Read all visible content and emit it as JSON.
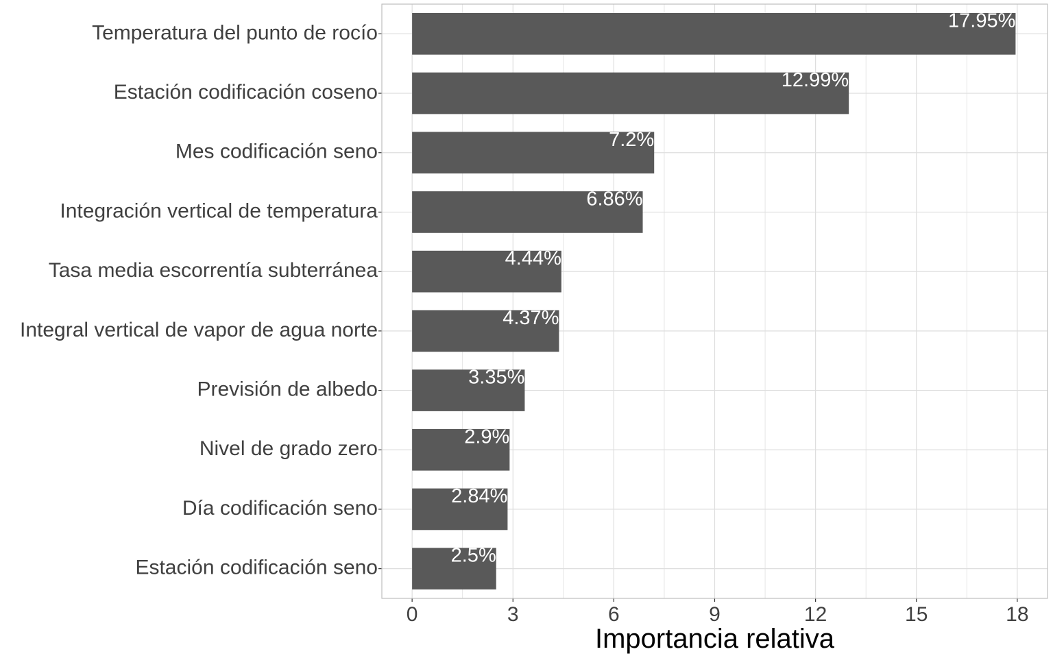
{
  "chart_data": {
    "type": "bar",
    "orientation": "horizontal",
    "categories": [
      "Temperatura del punto de rocío",
      "Estación codificación coseno",
      "Mes codificación seno",
      "Integración vertical de temperatura",
      "Tasa media escorrentía subterránea",
      "Integral vertical de vapor de agua norte",
      "Previsión de albedo",
      "Nivel de grado zero",
      "Día codificación seno",
      "Estación codificación seno"
    ],
    "values": [
      17.95,
      12.99,
      7.2,
      6.86,
      4.44,
      4.37,
      3.35,
      2.9,
      2.84,
      2.5
    ],
    "data_labels": [
      "17.95%",
      "12.99%",
      "7.2%",
      "6.86%",
      "4.44%",
      "4.37%",
      "3.35%",
      "2.9%",
      "2.84%",
      "2.5%"
    ],
    "xlabel": "Importancia relativa",
    "ylabel": "",
    "xlim": [
      -0.9,
      18.9
    ],
    "xticks": [
      0,
      3,
      6,
      9,
      12,
      15,
      18
    ],
    "xtick_labels": [
      "0",
      "3",
      "6",
      "9",
      "12",
      "15",
      "18"
    ],
    "grid": true,
    "legend": "none",
    "colors": {
      "bar": "#595959",
      "grid": "#dedede",
      "panel_border": "#bdbdbd",
      "data_label": "#ffffff",
      "text": "#404040"
    }
  }
}
